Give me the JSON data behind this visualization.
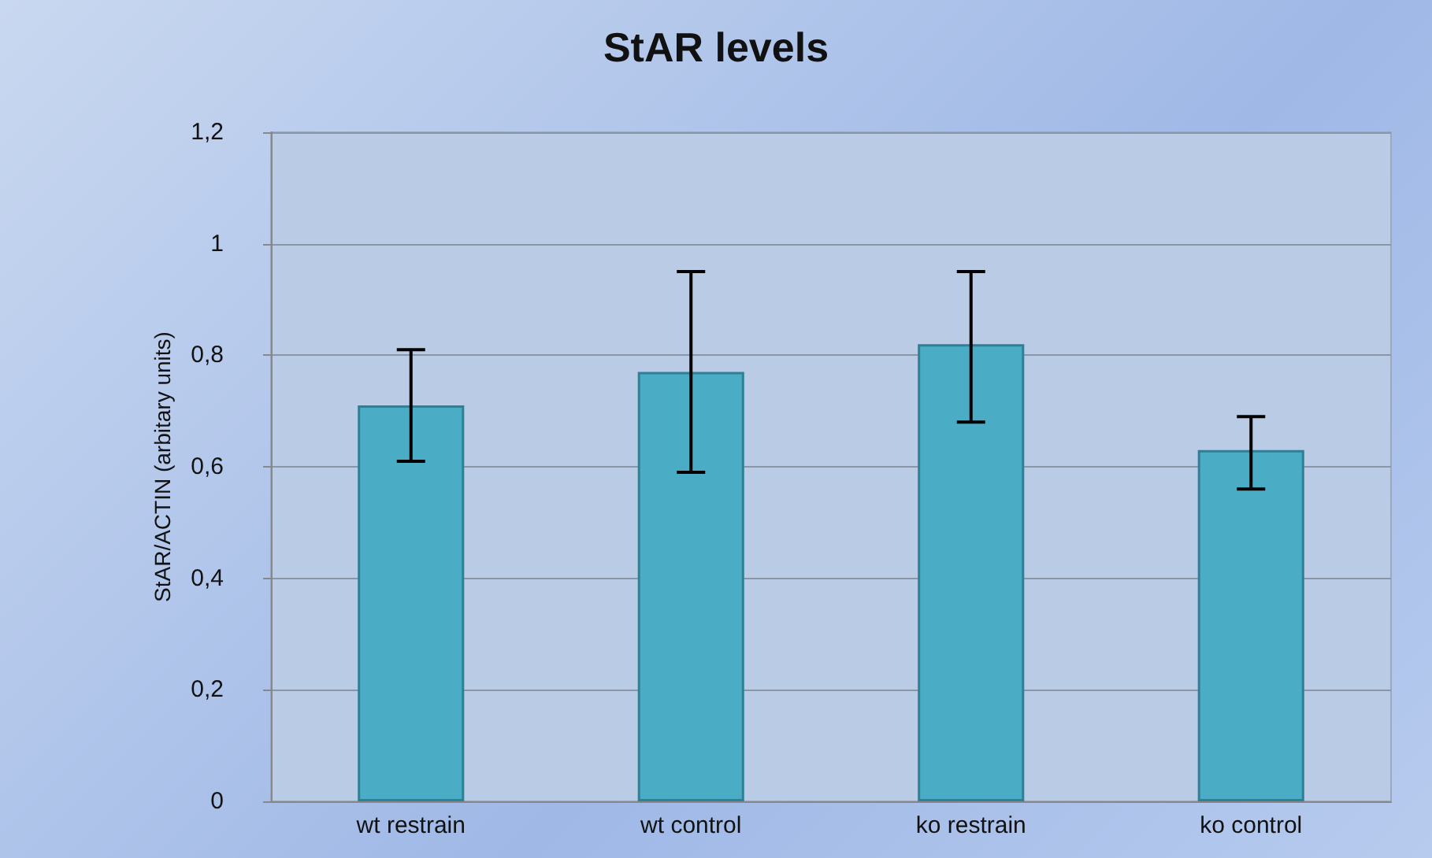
{
  "chart_data": {
    "type": "bar",
    "title": "StAR levels",
    "ylabel": "StAR/ACTIN (arbitary units)",
    "categories": [
      "wt restrain",
      "wt control",
      "ko restrain",
      "ko control"
    ],
    "values": [
      0.71,
      0.77,
      0.82,
      0.63
    ],
    "errors": [
      [
        0.61,
        0.81
      ],
      [
        0.59,
        0.95
      ],
      [
        0.68,
        0.95
      ],
      [
        0.56,
        0.69
      ]
    ],
    "color": "#4bacc6",
    "ylim": [
      0,
      1.2
    ],
    "yticks": [
      0,
      {
        "value": 0.2,
        "label": "0,2"
      },
      {
        "value": 0.4,
        "label": "0,4"
      },
      {
        "value": 0.6,
        "label": "0,6"
      },
      {
        "value": 0.8,
        "label": "0,8"
      },
      1,
      {
        "value": 1.2,
        "label": "1,2"
      }
    ],
    "grid": "y"
  }
}
